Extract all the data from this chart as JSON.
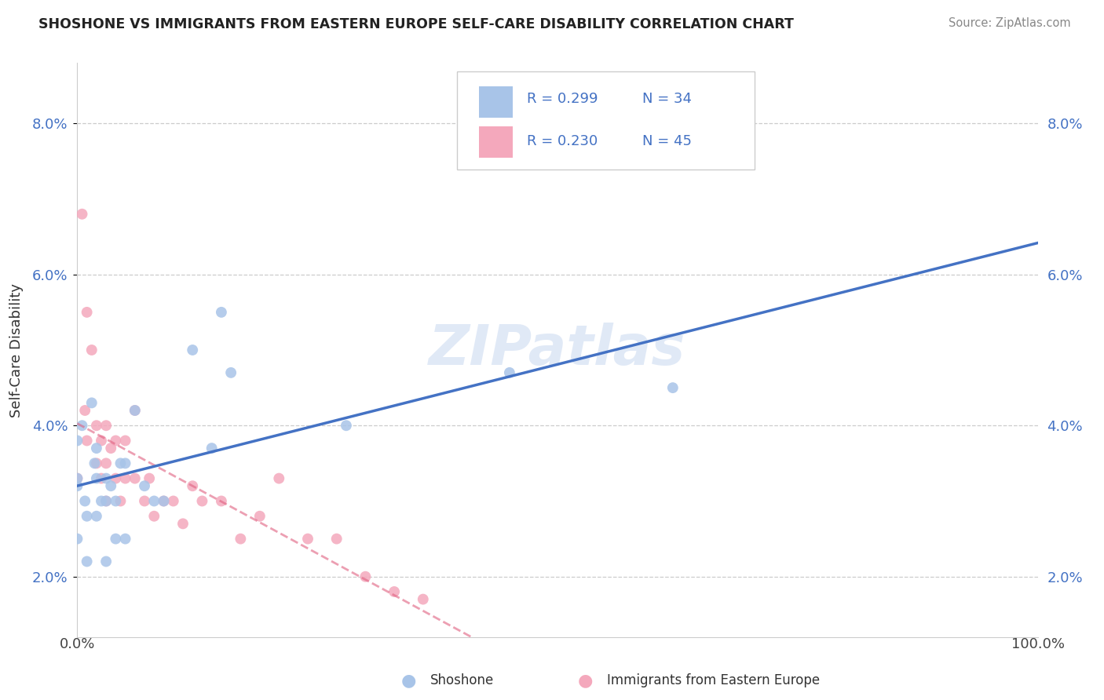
{
  "title": "SHOSHONE VS IMMIGRANTS FROM EASTERN EUROPE SELF-CARE DISABILITY CORRELATION CHART",
  "source": "Source: ZipAtlas.com",
  "ylabel": "Self-Care Disability",
  "xlim": [
    0,
    1.0
  ],
  "ylim": [
    0.012,
    0.088
  ],
  "yticks": [
    0.02,
    0.04,
    0.06,
    0.08
  ],
  "ytick_labels": [
    "2.0%",
    "4.0%",
    "6.0%",
    "8.0%"
  ],
  "color_blue": "#a8c4e8",
  "color_pink": "#f4a8bc",
  "line_color_blue": "#4472c4",
  "line_color_pink": "#e06080",
  "watermark_color": "#c8d8f0",
  "shoshone_x": [
    0.0,
    0.0,
    0.0,
    0.0,
    0.005,
    0.008,
    0.01,
    0.01,
    0.015,
    0.018,
    0.02,
    0.02,
    0.02,
    0.025,
    0.03,
    0.03,
    0.03,
    0.035,
    0.04,
    0.04,
    0.045,
    0.05,
    0.05,
    0.06,
    0.07,
    0.08,
    0.09,
    0.12,
    0.14,
    0.15,
    0.16,
    0.28,
    0.45,
    0.62
  ],
  "shoshone_y": [
    0.038,
    0.033,
    0.032,
    0.025,
    0.04,
    0.03,
    0.022,
    0.028,
    0.043,
    0.035,
    0.037,
    0.033,
    0.028,
    0.03,
    0.033,
    0.03,
    0.022,
    0.032,
    0.03,
    0.025,
    0.035,
    0.035,
    0.025,
    0.042,
    0.032,
    0.03,
    0.03,
    0.05,
    0.037,
    0.055,
    0.047,
    0.04,
    0.047,
    0.045
  ],
  "eastern_europe_x": [
    0.0,
    0.005,
    0.008,
    0.01,
    0.01,
    0.015,
    0.02,
    0.02,
    0.025,
    0.025,
    0.03,
    0.03,
    0.03,
    0.035,
    0.04,
    0.04,
    0.045,
    0.05,
    0.05,
    0.06,
    0.06,
    0.07,
    0.075,
    0.08,
    0.09,
    0.1,
    0.11,
    0.12,
    0.13,
    0.15,
    0.17,
    0.19,
    0.21,
    0.24,
    0.27,
    0.3,
    0.33,
    0.36
  ],
  "eastern_europe_y": [
    0.033,
    0.068,
    0.042,
    0.055,
    0.038,
    0.05,
    0.04,
    0.035,
    0.038,
    0.033,
    0.04,
    0.035,
    0.03,
    0.037,
    0.038,
    0.033,
    0.03,
    0.038,
    0.033,
    0.042,
    0.033,
    0.03,
    0.033,
    0.028,
    0.03,
    0.03,
    0.027,
    0.032,
    0.03,
    0.03,
    0.025,
    0.028,
    0.033,
    0.025,
    0.025,
    0.02,
    0.018,
    0.017
  ]
}
